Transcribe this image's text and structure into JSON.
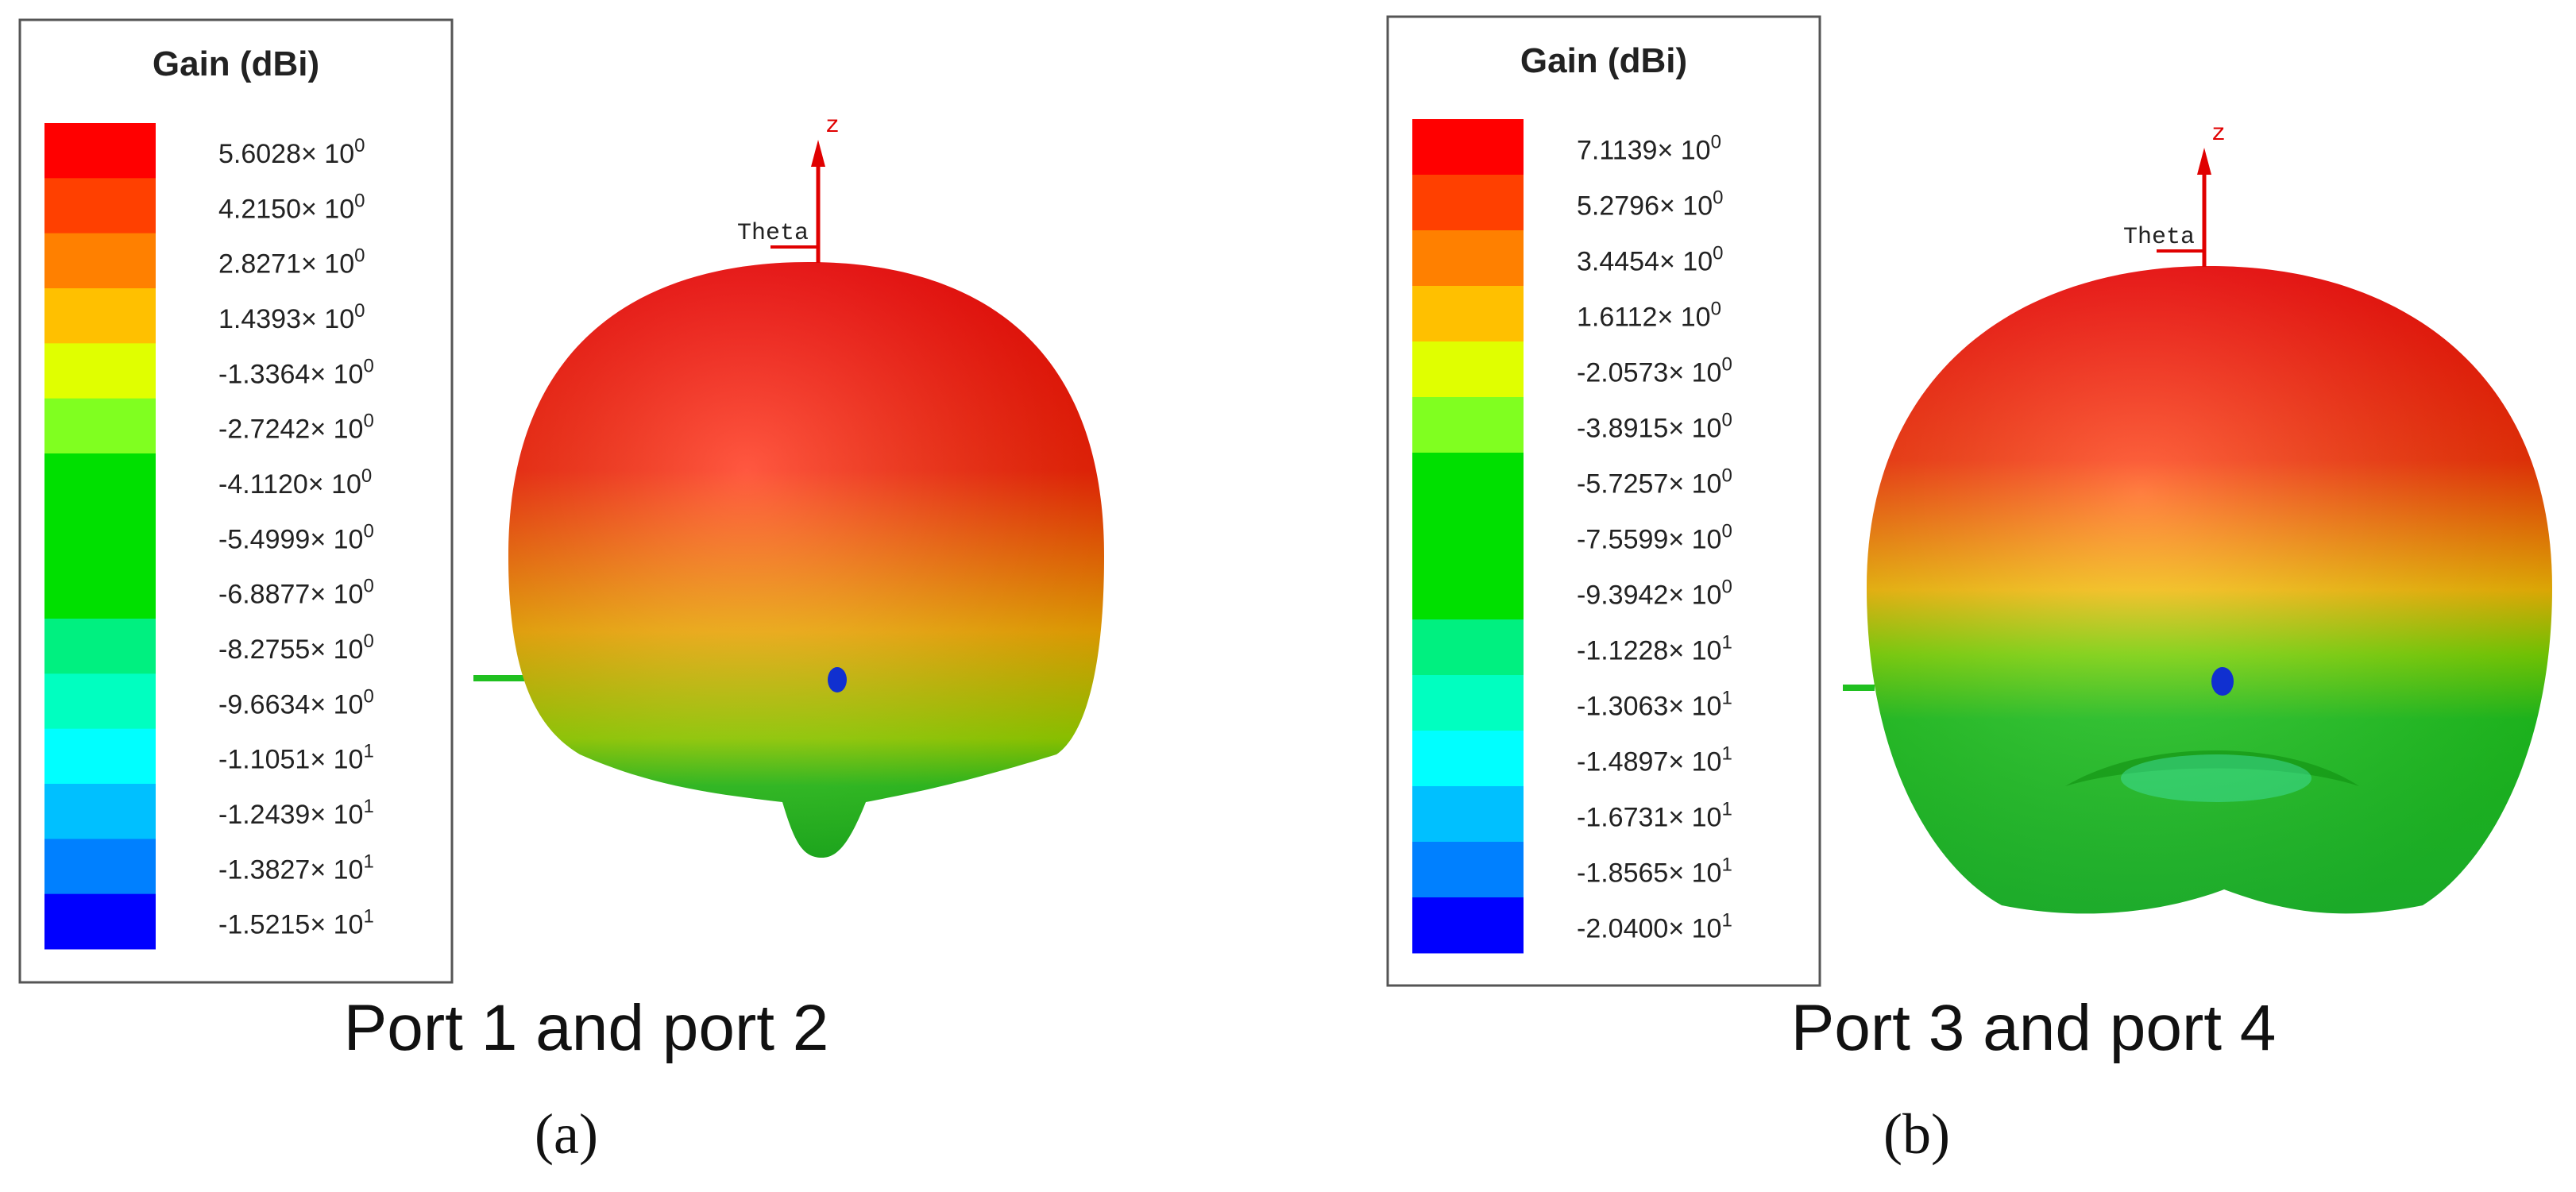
{
  "colors": [
    "#ff0000",
    "#ff4000",
    "#ff8000",
    "#ffc000",
    "#e0ff00",
    "#80ff20",
    "#00e000",
    "#00e000",
    "#00e000",
    "#00f080",
    "#00ffc0",
    "#00ffff",
    "#00c0ff",
    "#0080ff",
    "#0000ff"
  ],
  "panels": [
    {
      "legend": {
        "title": "Gain (dBi)",
        "labels": [
          {
            "base": "5.6028× 10",
            "exp": "0"
          },
          {
            "base": "4.2150× 10",
            "exp": "0"
          },
          {
            "base": "2.8271× 10",
            "exp": "0"
          },
          {
            "base": "1.4393× 10",
            "exp": "0"
          },
          {
            "base": "-1.3364× 10",
            "exp": "0"
          },
          {
            "base": "-2.7242× 10",
            "exp": "0"
          },
          {
            "base": "-4.1120× 10",
            "exp": "0"
          },
          {
            "base": "-5.4999× 10",
            "exp": "0"
          },
          {
            "base": "-6.8877× 10",
            "exp": "0"
          },
          {
            "base": "-8.2755× 10",
            "exp": "0"
          },
          {
            "base": "-9.6634× 10",
            "exp": "0"
          },
          {
            "base": "-1.1051× 10",
            "exp": "1"
          },
          {
            "base": "-1.2439× 10",
            "exp": "1"
          },
          {
            "base": "-1.3827× 10",
            "exp": "1"
          },
          {
            "base": "-1.5215× 10",
            "exp": "1"
          }
        ]
      },
      "axis_z": "z",
      "axis_theta": "Theta",
      "caption": "Port 1 and port 2",
      "sublabel": "(a)"
    },
    {
      "legend": {
        "title": "Gain (dBi)",
        "labels": [
          {
            "base": "7.1139× 10",
            "exp": "0"
          },
          {
            "base": "5.2796× 10",
            "exp": "0"
          },
          {
            "base": "3.4454× 10",
            "exp": "0"
          },
          {
            "base": "1.6112× 10",
            "exp": "0"
          },
          {
            "base": "-2.0573× 10",
            "exp": "0"
          },
          {
            "base": "-3.8915× 10",
            "exp": "0"
          },
          {
            "base": "-5.7257× 10",
            "exp": "0"
          },
          {
            "base": "-7.5599× 10",
            "exp": "0"
          },
          {
            "base": "-9.3942× 10",
            "exp": "0"
          },
          {
            "base": "-1.1228× 10",
            "exp": "1"
          },
          {
            "base": "-1.3063× 10",
            "exp": "1"
          },
          {
            "base": "-1.4897× 10",
            "exp": "1"
          },
          {
            "base": "-1.6731× 10",
            "exp": "1"
          },
          {
            "base": "-1.8565× 10",
            "exp": "1"
          },
          {
            "base": "-2.0400× 10",
            "exp": "1"
          }
        ]
      },
      "axis_z": "z",
      "axis_theta": "Theta",
      "caption": "Port 3 and port 4",
      "sublabel": "(b)"
    }
  ]
}
